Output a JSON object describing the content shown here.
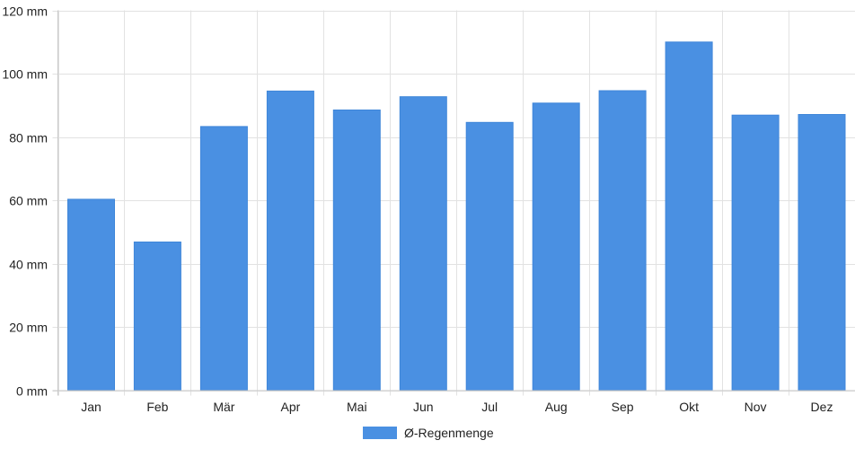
{
  "chart_data": {
    "type": "bar",
    "categories": [
      "Jan",
      "Feb",
      "Mär",
      "Apr",
      "Mai",
      "Jun",
      "Jul",
      "Aug",
      "Sep",
      "Okt",
      "Nov",
      "Dez"
    ],
    "series": [
      {
        "name": "Ø-Regenmenge",
        "values": [
          60.3,
          46.8,
          83.3,
          94.5,
          88.5,
          92.7,
          84.6,
          90.7,
          94.6,
          110,
          86.9,
          87.1
        ],
        "color": "#4a90e2"
      }
    ],
    "ylim": [
      0,
      120
    ],
    "yticks": [
      0,
      20,
      40,
      60,
      80,
      100,
      120
    ],
    "y_unit": "mm",
    "grid": true,
    "legend_position": "bottom-center"
  }
}
